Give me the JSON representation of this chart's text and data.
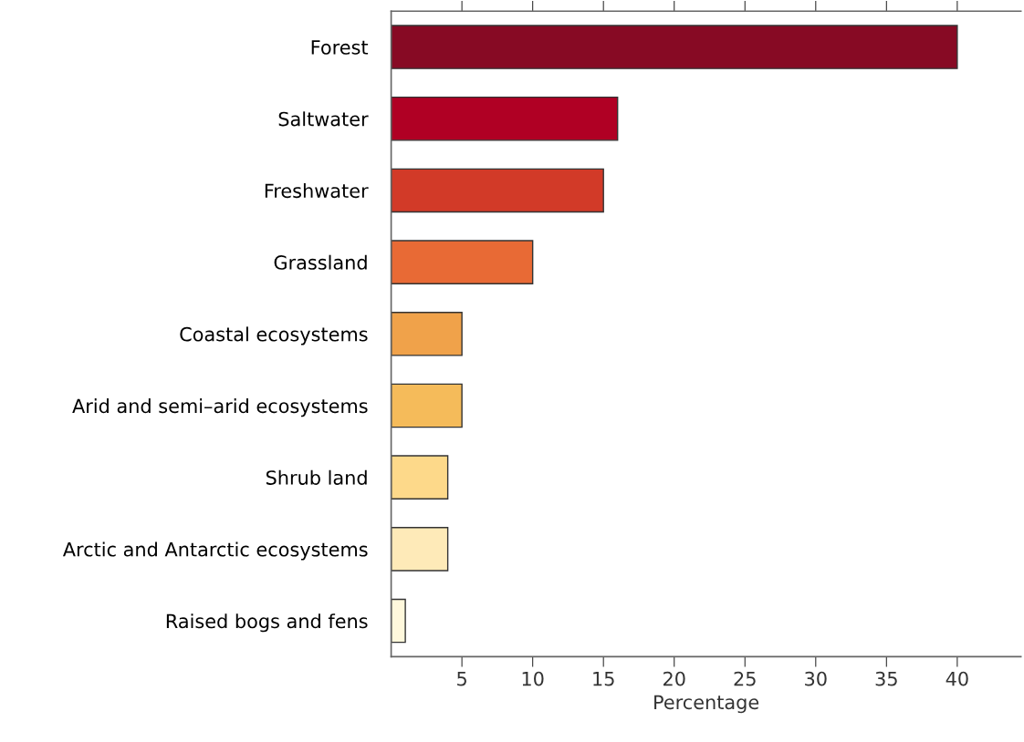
{
  "chart_data": {
    "type": "bar",
    "orientation": "horizontal",
    "xlabel": "Percentage",
    "categories": [
      "Forest",
      "Saltwater",
      "Freshwater",
      "Grassland",
      "Coastal ecosystems",
      "Arid and semi–arid ecosystems",
      "Shrub land",
      "Arctic and Antarctic ecosystems",
      "Raised bogs and fens"
    ],
    "values": [
      40,
      16,
      15,
      10,
      5,
      5,
      4,
      4,
      1
    ],
    "colors": [
      "#870a24",
      "#b00024",
      "#d23a28",
      "#e86a35",
      "#f0a24a",
      "#f5bb5a",
      "#fdd98a",
      "#feeab8",
      "#fff8dc"
    ],
    "xlim": [
      0,
      44.5
    ],
    "xticks": [
      5,
      10,
      15,
      20,
      25,
      30,
      35,
      40
    ],
    "grid": false
  }
}
